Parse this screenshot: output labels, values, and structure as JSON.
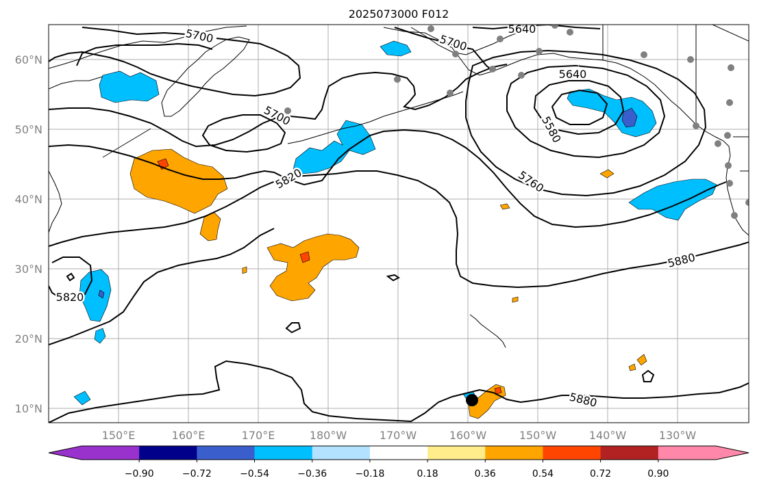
{
  "title": "2025073000 F012",
  "lat_labels": [
    "60°N",
    "50°N",
    "40°N",
    "30°N",
    "20°N",
    "10°N"
  ],
  "lon_labels": [
    "150°E",
    "160°E",
    "170°E",
    "180°W",
    "170°W",
    "160°W",
    "150°W",
    "140°W",
    "130°W"
  ],
  "contour_labels": [
    "5700",
    "5640",
    "5700",
    "5640",
    "5700",
    "5580",
    "5820",
    "5760",
    "5880",
    "5820",
    "5880"
  ],
  "colorbar": {
    "colors": [
      "#9932CC",
      "#00008B",
      "#3A5FCD",
      "#00BFFF",
      "#B2E2FF",
      "#FFFFFF",
      "#FFEC8B",
      "#FFA500",
      "#FF4500",
      "#B22222",
      "#FF88AA"
    ],
    "tick_labels": [
      "−0.90",
      "−0.72",
      "−0.54",
      "−0.36",
      "−0.18",
      "0.18",
      "0.36",
      "0.54",
      "0.72",
      "0.90"
    ]
  },
  "colors": {
    "negative_fill": "#00BFFF",
    "negative_strong": "#3A5FCD",
    "positive_fill": "#FFA500",
    "positive_strong": "#FF4500",
    "station_marker": "#808080",
    "contour": "#000000",
    "grid": "#999999"
  }
}
